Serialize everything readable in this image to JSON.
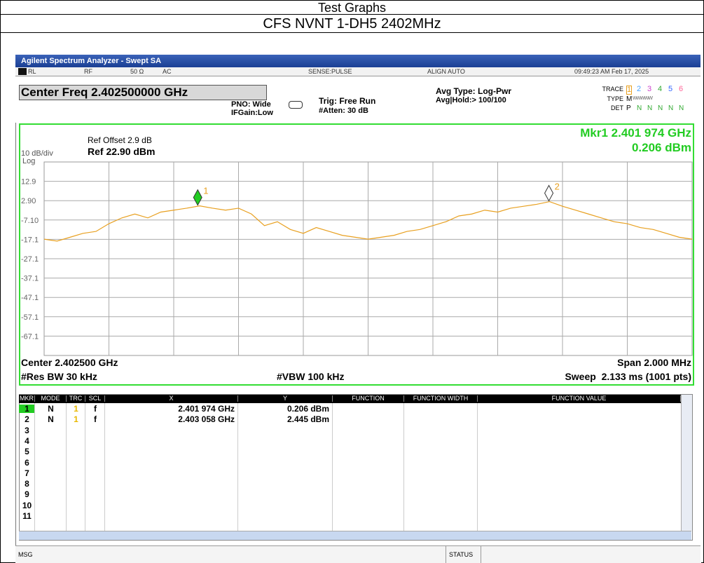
{
  "header": {
    "title": "Test Graphs",
    "subtitle": "CFS NVNT 1-DH5 2402MHz"
  },
  "app": {
    "window_title": "Agilent Spectrum Analyzer - Swept SA",
    "status_items": [
      "RL",
      "RF",
      "50 Ω",
      "AC",
      "SENSE:PULSE",
      "ALIGN AUTO",
      "09:49:23 AM Feb 17, 2025"
    ],
    "center_freq": "Center Freq 2.402500000 GHz",
    "pno": "PNO: Wide",
    "ifgain": "IFGain:Low",
    "trig": "Trig: Free Run",
    "atten": "#Atten: 30 dB",
    "avg_type": "Avg Type: Log-Pwr",
    "avg_hold": "Avg|Hold:> 100/100",
    "trace_label": "TRACE",
    "trace_numbers": [
      "1",
      "2",
      "3",
      "4",
      "5",
      "6"
    ],
    "type_label": "TYPE",
    "type_values": [
      "M",
      "WWWWW"
    ],
    "det_label": "DET",
    "det_values": [
      "P",
      "N",
      "N",
      "N",
      "N",
      "N"
    ]
  },
  "chart_data": {
    "type": "line",
    "ref_offset": "Ref Offset 2.9 dB",
    "scale_label": "10 dB/div",
    "ref_level": "Ref 22.90 dBm",
    "scale_type": "Log",
    "marker_readout": "Mkr1 2.401 974 GHz",
    "marker_readout_value": "0.206 dBm",
    "center": "Center 2.402500 GHz",
    "span": "Span 2.000 MHz",
    "rbw": "#Res BW 30 kHz",
    "vbw": "#VBW 100 kHz",
    "sweep": "Sweep  2.133 ms (1001 pts)",
    "xlim": [
      2.4015,
      2.4035
    ],
    "ylim": [
      -77.1,
      22.9
    ],
    "yticks": [
      12.9,
      {
        "value": 2.9,
        "label": "2.90"
      },
      {
        "value": -7.1,
        "label": "-7.10"
      },
      -17.1,
      -27.1,
      -37.1,
      -47.1,
      -57.1,
      -67.1
    ],
    "grid": true,
    "series": [
      {
        "color": "#e8a020",
        "x": [
          2.4015,
          2.40154,
          2.40158,
          2.40162,
          2.40166,
          2.4017,
          2.40174,
          2.40178,
          2.40182,
          2.40186,
          2.4019,
          2.40194,
          2.40198,
          2.40202,
          2.40206,
          2.4021,
          2.40214,
          2.40218,
          2.40222,
          2.40226,
          2.4023,
          2.40234,
          2.40238,
          2.40242,
          2.40246,
          2.4025,
          2.40254,
          2.40258,
          2.40262,
          2.40266,
          2.4027,
          2.40274,
          2.40278,
          2.40282,
          2.40286,
          2.4029,
          2.40294,
          2.40298,
          2.40302,
          2.40306,
          2.4031,
          2.40314,
          2.40318,
          2.40322,
          2.40326,
          2.4033,
          2.40334,
          2.40338,
          2.40342,
          2.40346,
          2.4035
        ],
        "values": [
          -17,
          -18,
          -16,
          -14,
          -13,
          -9,
          -6,
          -4,
          -6,
          -3,
          -2,
          -1,
          0.2,
          -1,
          -2,
          -1,
          -4,
          -10,
          -8,
          -12,
          -14,
          -11,
          -13,
          -15,
          -16,
          -17,
          -16,
          -15,
          -13,
          -12,
          -10,
          -8,
          -5,
          -4,
          -2,
          -3,
          -1,
          0,
          1,
          2.4,
          0,
          -2,
          -4,
          -6,
          -8,
          -9,
          -11,
          -12,
          -14,
          -16,
          -17
        ]
      }
    ],
    "markers": [
      {
        "label": "1",
        "x": 2.401974,
        "y": 0.206,
        "color": "#22cc22"
      },
      {
        "label": "2",
        "x": 2.403058,
        "y": 2.445,
        "color": "#ffffff"
      }
    ]
  },
  "table": {
    "headers": [
      "MKR",
      "MODE",
      "TRC",
      "SCL",
      "X",
      "Y",
      "FUNCTION",
      "FUNCTION WIDTH",
      "FUNCTION VALUE"
    ],
    "rows": [
      [
        "1",
        "N",
        "1",
        "f",
        "2.401 974 GHz",
        "0.206 dBm"
      ],
      [
        "2",
        "N",
        "1",
        "f",
        "2.403 058 GHz",
        "2.445 dBm"
      ],
      [
        "3"
      ],
      [
        "4"
      ],
      [
        "5"
      ],
      [
        "6"
      ],
      [
        "7"
      ],
      [
        "8"
      ],
      [
        "9"
      ],
      [
        "10"
      ],
      [
        "11"
      ]
    ]
  },
  "footer": {
    "msg": "MSG",
    "status": "STATUS"
  }
}
